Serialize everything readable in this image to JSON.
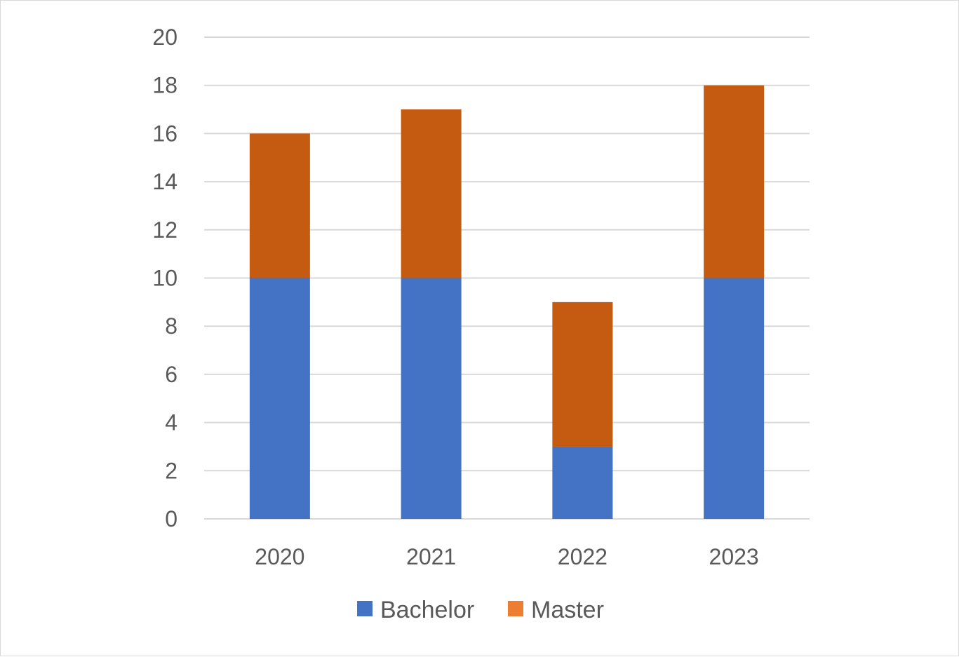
{
  "chart_data": {
    "type": "bar",
    "stacked": true,
    "categories": [
      "2020",
      "2021",
      "2022",
      "2023"
    ],
    "series": [
      {
        "name": "Bachelor",
        "values": [
          10,
          10,
          3,
          10
        ],
        "color": "#4472C4",
        "legend_color": "#4472C4"
      },
      {
        "name": "Master",
        "values": [
          6,
          7,
          6,
          8
        ],
        "color": "#C55A11",
        "legend_color": "#ED7D31"
      }
    ],
    "title": "",
    "xlabel": "",
    "ylabel": "",
    "ylim": [
      0,
      20
    ],
    "y_ticks": [
      "0",
      "2",
      "4",
      "6",
      "8",
      "10",
      "12",
      "14",
      "16",
      "18",
      "20"
    ],
    "grid": true,
    "legend_position": "bottom"
  }
}
